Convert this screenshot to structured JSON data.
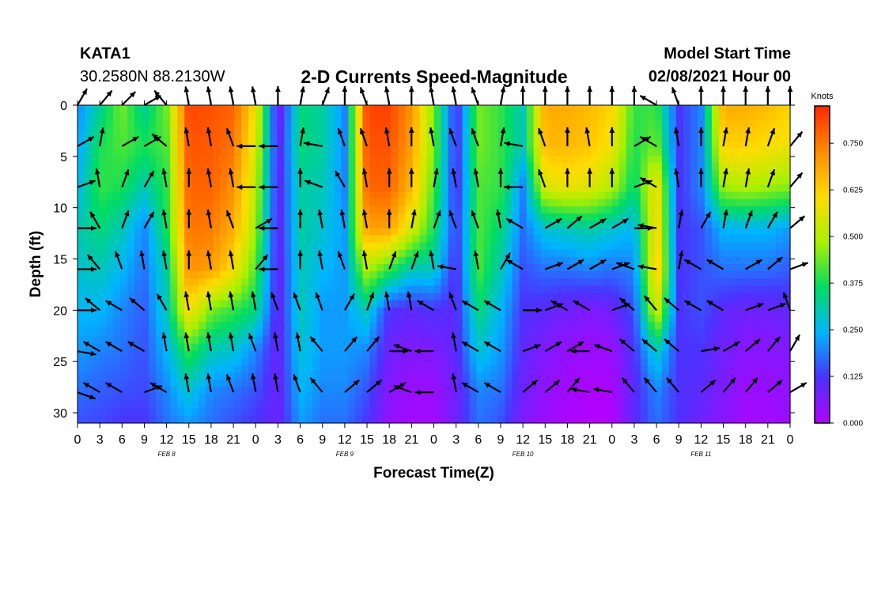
{
  "header": {
    "station": "KATA1",
    "coords": "30.2580N 88.2130W",
    "title": "2-D Currents Speed-Magnitude",
    "model_start_label": "Model Start Time",
    "model_start_value": "02/08/2021 Hour 00"
  },
  "colorbar": {
    "units": "Knots",
    "ticks": [
      "0.000",
      "0.125",
      "0.250",
      "0.375",
      "0.500",
      "0.625",
      "0.750"
    ],
    "colors": [
      "#b400ff",
      "#4b32ff",
      "#00b4ff",
      "#00dc64",
      "#aaf000",
      "#ffdc00",
      "#ff8c00",
      "#ff2a00"
    ]
  },
  "chart_data": {
    "type": "heatmap",
    "title": "2-D Currents Speed-Magnitude",
    "xlabel": "Forecast Time(Z)",
    "ylabel": "Depth (ft)",
    "x_tick_labels": [
      "0",
      "3",
      "6",
      "9",
      "12",
      "15",
      "18",
      "21",
      "0",
      "3",
      "6",
      "9",
      "12",
      "15",
      "18",
      "21",
      "0",
      "3",
      "6",
      "9",
      "12",
      "15",
      "18",
      "21",
      "0",
      "3",
      "6",
      "9",
      "12",
      "15",
      "18",
      "21",
      "0"
    ],
    "date_labels": [
      "FEB 8",
      "FEB 9",
      "FEB 10",
      "FEB 11"
    ],
    "y_ticks": [
      0,
      5,
      10,
      15,
      20,
      25,
      30
    ],
    "ylim": [
      31,
      0
    ],
    "hours": [
      0,
      3,
      6,
      9,
      12,
      15,
      18,
      21,
      24,
      27,
      30,
      33,
      36,
      39,
      42,
      45,
      48,
      51,
      54,
      57,
      60,
      63,
      66,
      69,
      72,
      75,
      78,
      81,
      84,
      87,
      90,
      93,
      96
    ],
    "depths_ft": [
      0,
      4,
      8,
      12,
      16,
      20,
      24,
      28,
      31
    ],
    "speed_knots_rows": [
      [
        0.2,
        0.32,
        0.45,
        0.32,
        0.45,
        0.82,
        0.8,
        0.78,
        0.6,
        0.05,
        0.35,
        0.32,
        0.2,
        0.82,
        0.82,
        0.72,
        0.45,
        0.1,
        0.45,
        0.4,
        0.3,
        0.68,
        0.68,
        0.66,
        0.62,
        0.4,
        0.4,
        0.12,
        0.2,
        0.68,
        0.68,
        0.66,
        0.62
      ],
      [
        0.22,
        0.38,
        0.42,
        0.38,
        0.42,
        0.8,
        0.79,
        0.76,
        0.55,
        0.08,
        0.35,
        0.32,
        0.2,
        0.8,
        0.8,
        0.7,
        0.45,
        0.1,
        0.45,
        0.4,
        0.3,
        0.66,
        0.66,
        0.64,
        0.58,
        0.38,
        0.45,
        0.12,
        0.2,
        0.62,
        0.62,
        0.6,
        0.58
      ],
      [
        0.25,
        0.4,
        0.38,
        0.3,
        0.4,
        0.78,
        0.78,
        0.72,
        0.52,
        0.08,
        0.32,
        0.3,
        0.2,
        0.78,
        0.78,
        0.66,
        0.42,
        0.1,
        0.42,
        0.4,
        0.2,
        0.55,
        0.58,
        0.56,
        0.5,
        0.35,
        0.6,
        0.12,
        0.2,
        0.48,
        0.5,
        0.48,
        0.46
      ],
      [
        0.3,
        0.35,
        0.3,
        0.2,
        0.38,
        0.76,
        0.75,
        0.68,
        0.48,
        0.08,
        0.32,
        0.28,
        0.22,
        0.7,
        0.7,
        0.55,
        0.38,
        0.12,
        0.42,
        0.35,
        0.18,
        0.28,
        0.3,
        0.32,
        0.28,
        0.25,
        0.62,
        0.12,
        0.15,
        0.25,
        0.25,
        0.25,
        0.22
      ],
      [
        0.28,
        0.3,
        0.25,
        0.18,
        0.32,
        0.72,
        0.7,
        0.6,
        0.42,
        0.08,
        0.3,
        0.25,
        0.22,
        0.5,
        0.4,
        0.3,
        0.3,
        0.1,
        0.42,
        0.3,
        0.15,
        0.18,
        0.18,
        0.2,
        0.18,
        0.2,
        0.65,
        0.12,
        0.15,
        0.18,
        0.18,
        0.18,
        0.16
      ],
      [
        0.25,
        0.25,
        0.2,
        0.16,
        0.3,
        0.6,
        0.45,
        0.4,
        0.35,
        0.08,
        0.3,
        0.22,
        0.22,
        0.3,
        0.12,
        0.1,
        0.12,
        0.1,
        0.35,
        0.25,
        0.12,
        0.1,
        0.08,
        0.06,
        0.08,
        0.15,
        0.55,
        0.12,
        0.15,
        0.1,
        0.08,
        0.08,
        0.1
      ],
      [
        0.22,
        0.2,
        0.18,
        0.15,
        0.25,
        0.4,
        0.3,
        0.28,
        0.2,
        0.08,
        0.28,
        0.22,
        0.22,
        0.2,
        0.08,
        0.06,
        0.06,
        0.1,
        0.28,
        0.22,
        0.1,
        0.06,
        0.04,
        0.03,
        0.03,
        0.12,
        0.3,
        0.12,
        0.12,
        0.08,
        0.05,
        0.05,
        0.06
      ],
      [
        0.18,
        0.16,
        0.15,
        0.14,
        0.2,
        0.28,
        0.2,
        0.18,
        0.15,
        0.08,
        0.25,
        0.2,
        0.2,
        0.15,
        0.05,
        0.03,
        0.03,
        0.08,
        0.2,
        0.18,
        0.08,
        0.04,
        0.02,
        0.01,
        0.01,
        0.1,
        0.2,
        0.12,
        0.1,
        0.06,
        0.03,
        0.03,
        0.04
      ],
      [
        0.15,
        0.14,
        0.12,
        0.12,
        0.18,
        0.22,
        0.18,
        0.15,
        0.12,
        0.08,
        0.22,
        0.18,
        0.18,
        0.12,
        0.04,
        0.02,
        0.02,
        0.08,
        0.18,
        0.15,
        0.06,
        0.03,
        0.01,
        0.0,
        0.0,
        0.1,
        0.18,
        0.12,
        0.08,
        0.05,
        0.02,
        0.02,
        0.03
      ]
    ],
    "vector_hours": [
      0,
      3,
      6,
      9,
      12,
      15,
      18,
      21,
      24,
      27,
      30,
      33,
      36,
      39,
      42,
      45,
      48,
      51,
      54,
      57,
      60,
      63,
      66,
      69,
      72,
      75,
      78,
      81,
      84,
      87,
      90,
      93,
      96
    ],
    "vector_depths_ft": [
      0,
      4,
      8,
      12,
      16,
      20,
      24,
      28
    ],
    "vector_direction_deg_rows": [
      [
        30,
        40,
        45,
        60,
        -40,
        -10,
        -10,
        -10,
        -10,
        0,
        10,
        20,
        0,
        -20,
        -10,
        0,
        -10,
        -10,
        -20,
        10,
        0,
        0,
        0,
        0,
        0,
        0,
        -60,
        -20,
        0,
        0,
        0,
        0,
        0
      ],
      [
        60,
        10,
        60,
        60,
        -50,
        -10,
        -10,
        -20,
        -90,
        -90,
        10,
        -80,
        -20,
        -20,
        -10,
        0,
        -10,
        -20,
        -20,
        10,
        -80,
        -20,
        0,
        -10,
        0,
        60,
        -60,
        -10,
        0,
        10,
        10,
        20,
        40
      ],
      [
        70,
        -10,
        20,
        30,
        -10,
        0,
        -10,
        -10,
        -90,
        -90,
        0,
        -70,
        -30,
        -10,
        0,
        0,
        10,
        -10,
        -10,
        0,
        -90,
        -20,
        0,
        0,
        0,
        70,
        -60,
        -10,
        0,
        10,
        10,
        20,
        40
      ],
      [
        90,
        -30,
        20,
        30,
        -10,
        0,
        -10,
        -20,
        60,
        -90,
        0,
        -10,
        -10,
        -10,
        0,
        10,
        20,
        -20,
        -20,
        -10,
        -60,
        60,
        50,
        60,
        60,
        90,
        -80,
        10,
        30,
        10,
        20,
        30,
        50
      ],
      [
        90,
        -40,
        -20,
        -10,
        -10,
        0,
        -10,
        -10,
        40,
        -90,
        0,
        -10,
        -20,
        -10,
        20,
        20,
        -10,
        -80,
        -10,
        30,
        -60,
        70,
        60,
        60,
        70,
        -70,
        -80,
        10,
        -60,
        -60,
        60,
        50,
        70
      ],
      [
        90,
        -50,
        -60,
        -50,
        -30,
        -10,
        -10,
        -10,
        -10,
        -20,
        -20,
        -20,
        30,
        20,
        -10,
        -10,
        -60,
        -20,
        -60,
        -60,
        90,
        70,
        -60,
        -60,
        70,
        -50,
        -40,
        -50,
        -60,
        -60,
        70,
        70,
        -20
      ],
      [
        100,
        -60,
        -60,
        -60,
        -10,
        -10,
        -10,
        -10,
        -20,
        -10,
        -10,
        -40,
        40,
        40,
        90,
        -70,
        -90,
        -10,
        -60,
        -60,
        70,
        60,
        60,
        -90,
        -70,
        -50,
        -50,
        -50,
        80,
        60,
        50,
        40,
        30
      ],
      [
        110,
        -60,
        -60,
        70,
        -60,
        -10,
        -10,
        -20,
        -10,
        -10,
        -20,
        -40,
        50,
        50,
        60,
        -70,
        -90,
        -10,
        -60,
        -60,
        50,
        50,
        40,
        -80,
        -80,
        -40,
        -40,
        -40,
        50,
        40,
        40,
        50,
        60
      ]
    ]
  }
}
